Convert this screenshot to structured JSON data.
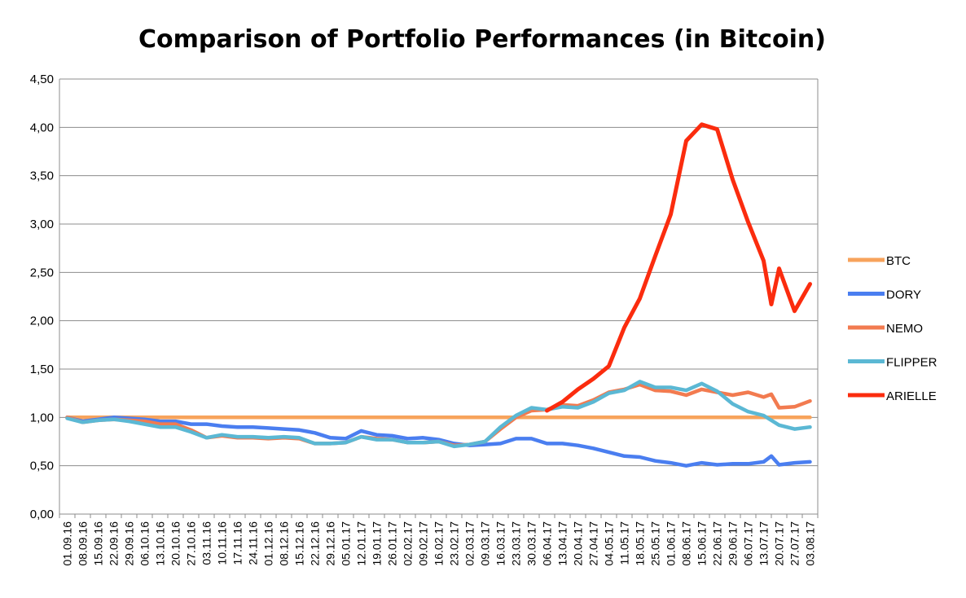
{
  "chart_data": {
    "type": "line",
    "title": "Comparison of Portfolio Performances (in Bitcoin)",
    "xlabel": "",
    "ylabel": "",
    "ylim": [
      0,
      4.5
    ],
    "yticks": [
      "0,00",
      "0,50",
      "1,00",
      "1,50",
      "2,00",
      "2,50",
      "3,00",
      "3,50",
      "4,00",
      "4,50"
    ],
    "grid": true,
    "legend_position": "right",
    "categories": [
      "01.09.16",
      "08.09.16",
      "15.09.16",
      "22.09.16",
      "29.09.16",
      "06.10.16",
      "13.10.16",
      "20.10.16",
      "27.10.16",
      "03.11.16",
      "10.11.16",
      "17.11.16",
      "24.11.16",
      "01.12.16",
      "08.12.16",
      "15.12.16",
      "22.12.16",
      "29.12.16",
      "05.01.17",
      "12.01.17",
      "19.01.17",
      "26.01.17",
      "02.02.17",
      "09.02.17",
      "16.02.17",
      "23.02.17",
      "02.03.17",
      "09.03.17",
      "16.03.17",
      "23.03.17",
      "30.03.17",
      "06.04.17",
      "13.04.17",
      "20.04.17",
      "27.04.17",
      "04.05.17",
      "11.05.17",
      "18.05.17",
      "25.05.17",
      "01.06.17",
      "08.06.17",
      "15.06.17",
      "22.06.17",
      "29.06.17",
      "06.07.17",
      "13.07.17",
      "20.07.17",
      "27.07.17",
      "03.08.17"
    ],
    "x_between_labels": [
      45.5
    ],
    "series": [
      {
        "name": "BTC",
        "color": "#f7a35c",
        "points": [
          [
            0,
            1.0
          ],
          [
            48,
            1.0
          ]
        ]
      },
      {
        "name": "DORY",
        "color": "#4a7ef0",
        "points": [
          [
            0,
            1.0
          ],
          [
            1,
            0.96
          ],
          [
            2,
            0.98
          ],
          [
            3,
            1.0
          ],
          [
            4,
            0.99
          ],
          [
            5,
            0.98
          ],
          [
            6,
            0.96
          ],
          [
            7,
            0.96
          ],
          [
            8,
            0.93
          ],
          [
            9,
            0.93
          ],
          [
            10,
            0.91
          ],
          [
            11,
            0.9
          ],
          [
            12,
            0.9
          ],
          [
            13,
            0.89
          ],
          [
            14,
            0.88
          ],
          [
            15,
            0.87
          ],
          [
            16,
            0.84
          ],
          [
            17,
            0.79
          ],
          [
            18,
            0.78
          ],
          [
            19,
            0.86
          ],
          [
            20,
            0.82
          ],
          [
            21,
            0.81
          ],
          [
            22,
            0.78
          ],
          [
            23,
            0.79
          ],
          [
            24,
            0.77
          ],
          [
            25,
            0.73
          ],
          [
            26,
            0.71
          ],
          [
            27,
            0.72
          ],
          [
            28,
            0.73
          ],
          [
            29,
            0.78
          ],
          [
            30,
            0.78
          ],
          [
            31,
            0.73
          ],
          [
            32,
            0.73
          ],
          [
            33,
            0.71
          ],
          [
            34,
            0.68
          ],
          [
            35,
            0.64
          ],
          [
            36,
            0.6
          ],
          [
            37,
            0.59
          ],
          [
            38,
            0.55
          ],
          [
            39,
            0.53
          ],
          [
            40,
            0.5
          ],
          [
            41,
            0.53
          ],
          [
            42,
            0.51
          ],
          [
            43,
            0.52
          ],
          [
            44,
            0.52
          ],
          [
            45,
            0.54
          ],
          [
            45.5,
            0.6
          ],
          [
            46,
            0.51
          ],
          [
            47,
            0.53
          ],
          [
            48,
            0.54
          ]
        ]
      },
      {
        "name": "NEMO",
        "color": "#f27b50",
        "points": [
          [
            0,
            1.0
          ],
          [
            1,
            0.95
          ],
          [
            2,
            0.97
          ],
          [
            3,
            0.98
          ],
          [
            4,
            0.97
          ],
          [
            5,
            0.96
          ],
          [
            6,
            0.93
          ],
          [
            7,
            0.93
          ],
          [
            8,
            0.87
          ],
          [
            9,
            0.79
          ],
          [
            10,
            0.81
          ],
          [
            11,
            0.79
          ],
          [
            12,
            0.79
          ],
          [
            13,
            0.78
          ],
          [
            14,
            0.79
          ],
          [
            15,
            0.78
          ],
          [
            16,
            0.73
          ],
          [
            17,
            0.73
          ],
          [
            18,
            0.74
          ],
          [
            19,
            0.8
          ],
          [
            20,
            0.78
          ],
          [
            21,
            0.77
          ],
          [
            22,
            0.74
          ],
          [
            23,
            0.74
          ],
          [
            24,
            0.75
          ],
          [
            25,
            0.71
          ],
          [
            26,
            0.72
          ],
          [
            27,
            0.75
          ],
          [
            28,
            0.88
          ],
          [
            29,
            1.0
          ],
          [
            30,
            1.07
          ],
          [
            31,
            1.08
          ],
          [
            32,
            1.13
          ],
          [
            33,
            1.12
          ],
          [
            34,
            1.18
          ],
          [
            35,
            1.26
          ],
          [
            36,
            1.29
          ],
          [
            37,
            1.34
          ],
          [
            38,
            1.28
          ],
          [
            39,
            1.27
          ],
          [
            40,
            1.23
          ],
          [
            41,
            1.29
          ],
          [
            42,
            1.26
          ],
          [
            43,
            1.23
          ],
          [
            44,
            1.26
          ],
          [
            45,
            1.21
          ],
          [
            45.5,
            1.24
          ],
          [
            46,
            1.1
          ],
          [
            47,
            1.11
          ],
          [
            48,
            1.17
          ]
        ]
      },
      {
        "name": "FLIPPER",
        "color": "#5bb8d4",
        "points": [
          [
            0,
            0.99
          ],
          [
            1,
            0.95
          ],
          [
            2,
            0.97
          ],
          [
            3,
            0.98
          ],
          [
            4,
            0.96
          ],
          [
            5,
            0.93
          ],
          [
            6,
            0.9
          ],
          [
            7,
            0.9
          ],
          [
            8,
            0.85
          ],
          [
            9,
            0.79
          ],
          [
            10,
            0.82
          ],
          [
            11,
            0.8
          ],
          [
            12,
            0.8
          ],
          [
            13,
            0.79
          ],
          [
            14,
            0.8
          ],
          [
            15,
            0.79
          ],
          [
            16,
            0.73
          ],
          [
            17,
            0.73
          ],
          [
            18,
            0.74
          ],
          [
            19,
            0.8
          ],
          [
            20,
            0.77
          ],
          [
            21,
            0.77
          ],
          [
            22,
            0.74
          ],
          [
            23,
            0.74
          ],
          [
            24,
            0.75
          ],
          [
            25,
            0.7
          ],
          [
            26,
            0.72
          ],
          [
            27,
            0.75
          ],
          [
            28,
            0.9
          ],
          [
            29,
            1.02
          ],
          [
            30,
            1.1
          ],
          [
            31,
            1.08
          ],
          [
            32,
            1.11
          ],
          [
            33,
            1.1
          ],
          [
            34,
            1.16
          ],
          [
            35,
            1.25
          ],
          [
            36,
            1.28
          ],
          [
            37,
            1.37
          ],
          [
            38,
            1.31
          ],
          [
            39,
            1.31
          ],
          [
            40,
            1.28
          ],
          [
            41,
            1.35
          ],
          [
            42,
            1.27
          ],
          [
            43,
            1.14
          ],
          [
            44,
            1.06
          ],
          [
            45,
            1.02
          ],
          [
            46,
            0.92
          ],
          [
            47,
            0.88
          ],
          [
            48,
            0.9
          ]
        ]
      },
      {
        "name": "ARIELLE",
        "color": "#fb2c0e",
        "points": [
          [
            31,
            1.07
          ],
          [
            32,
            1.16
          ],
          [
            33,
            1.29
          ],
          [
            34,
            1.4
          ],
          [
            35,
            1.53
          ],
          [
            36,
            1.93
          ],
          [
            37,
            2.23
          ],
          [
            38,
            2.67
          ],
          [
            39,
            3.1
          ],
          [
            40,
            3.86
          ],
          [
            41,
            4.03
          ],
          [
            42,
            3.98
          ],
          [
            43,
            3.46
          ],
          [
            44,
            3.02
          ],
          [
            45,
            2.62
          ],
          [
            45.5,
            2.17
          ],
          [
            46,
            2.54
          ],
          [
            47,
            2.1
          ],
          [
            48,
            2.38
          ]
        ]
      }
    ]
  }
}
